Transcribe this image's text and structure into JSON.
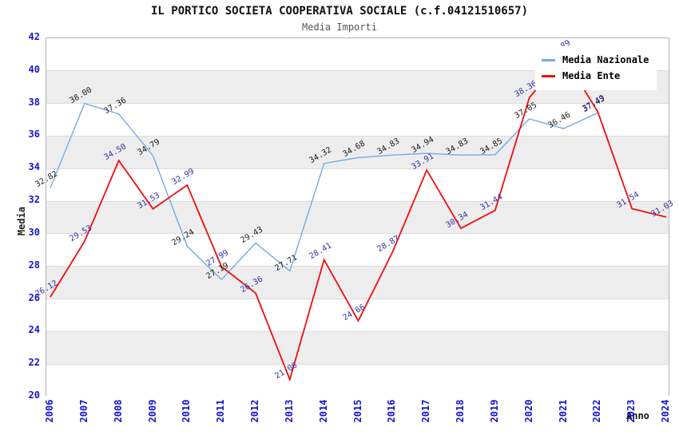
{
  "chart_data": {
    "type": "line",
    "title": "IL PORTICO SOCIETA COOPERATIVA SOCIALE (c.f.04121510657)",
    "subtitle": "Media Importi",
    "xlabel": "Anno",
    "ylabel": "Media",
    "ylim": [
      20,
      42
    ],
    "ytick_step": 2,
    "grid": "horizontal-bands-alternating",
    "legend_position": "top-right",
    "categories": [
      2006,
      2007,
      2008,
      2009,
      2010,
      2011,
      2012,
      2013,
      2014,
      2015,
      2016,
      2017,
      2018,
      2019,
      2020,
      2021,
      2022,
      2023,
      2024
    ],
    "series": [
      {
        "name": "Media Nazionale",
        "color": "#73ABE4",
        "label_color": "#1A1A1A",
        "values": [
          32.82,
          38.0,
          37.36,
          34.79,
          29.24,
          27.19,
          29.43,
          27.71,
          34.32,
          34.68,
          34.83,
          34.94,
          34.83,
          34.85,
          37.05,
          36.46,
          37.43,
          null,
          null
        ]
      },
      {
        "name": "Media Ente",
        "color": "#EE0E0E",
        "label_color": "#3232AA",
        "values": [
          26.12,
          29.53,
          34.5,
          31.53,
          32.99,
          27.99,
          26.36,
          21.06,
          28.41,
          24.66,
          28.87,
          33.91,
          30.34,
          31.44,
          38.36,
          40.89,
          37.49,
          31.54,
          31.03
        ]
      }
    ]
  },
  "styles": {
    "band_gray": "#EDEDED",
    "gridline": "#DCDCDC",
    "plot_border": "#B3B3B3",
    "tick_color": "#1515CE",
    "axis_title_color": "#222222",
    "subtitle_color": "#555555",
    "background": "#FFFFFF"
  }
}
